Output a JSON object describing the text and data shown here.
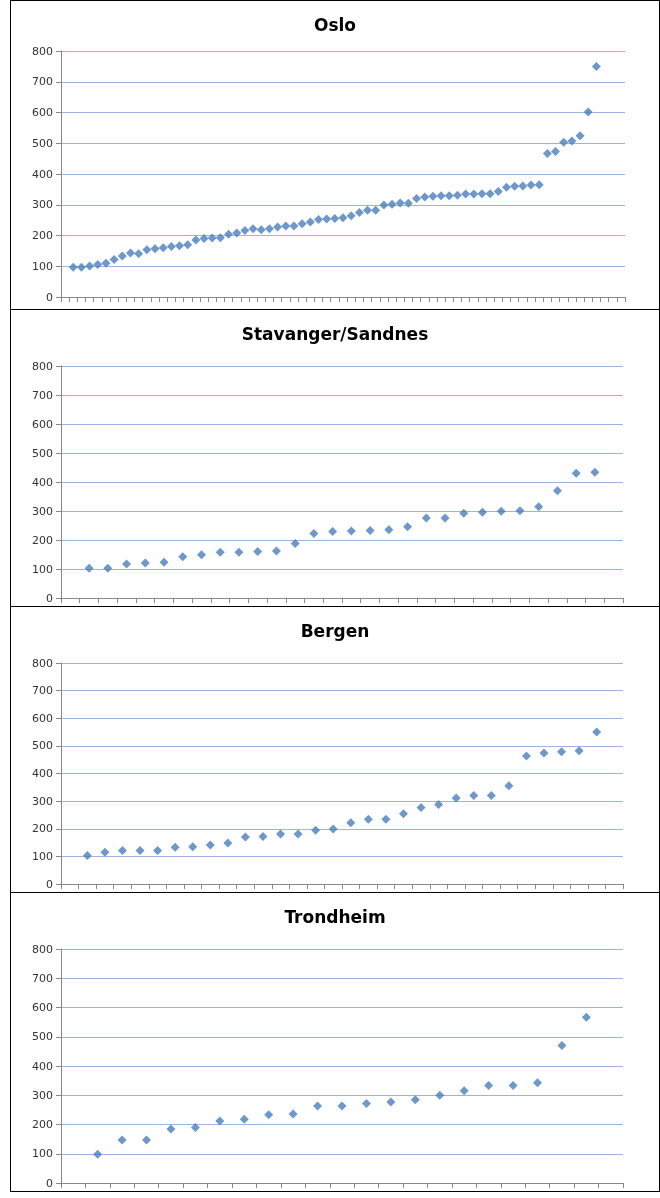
{
  "chart_data": [
    {
      "type": "scatter",
      "title": "Oslo",
      "categories": [
        null,
        null,
        null,
        null,
        null,
        null,
        null,
        null,
        null,
        null,
        null,
        null,
        null,
        null,
        null,
        null,
        null,
        null,
        null,
        null,
        null,
        null,
        null,
        null,
        null,
        null,
        null,
        null,
        null,
        null,
        null,
        null,
        null,
        null,
        null,
        null,
        null,
        null,
        null,
        null,
        null,
        null,
        null,
        null,
        null,
        null,
        null,
        null,
        null,
        null,
        null,
        null,
        null,
        null,
        null,
        null,
        null,
        null,
        null,
        null,
        null,
        null,
        null,
        null,
        null,
        null,
        null,
        null,
        null
      ],
      "series": [
        {
          "color": "#4a7ebb",
          "values": [
            null,
            97,
            97,
            101,
            106,
            110,
            122,
            133,
            143,
            141,
            154,
            157,
            160,
            164,
            167,
            170,
            185,
            190,
            192,
            193,
            204,
            208,
            216,
            222,
            219,
            222,
            228,
            231,
            231,
            238,
            244,
            252,
            254,
            255,
            258,
            264,
            275,
            282,
            282,
            299,
            302,
            306,
            305,
            320,
            325,
            328,
            329,
            329,
            331,
            335,
            335,
            336,
            336,
            343,
            357,
            360,
            361,
            364,
            365,
            467,
            473,
            503,
            507,
            524,
            602,
            750,
            null,
            null,
            null
          ]
        }
      ],
      "ylim": [
        0,
        800
      ],
      "yticks": [
        0,
        100,
        200,
        300,
        400,
        500,
        600,
        700,
        800
      ],
      "grid": "y",
      "marker": "diamond",
      "tick_labels": "y"
    },
    {
      "type": "scatter",
      "title": "Stavanger/Sandnes",
      "categories": [
        null,
        null,
        null,
        null,
        null,
        null,
        null,
        null,
        null,
        null,
        null,
        null,
        null,
        null,
        null,
        null,
        null,
        null,
        null,
        null,
        null,
        null,
        null,
        null,
        null,
        null,
        null,
        null,
        null,
        null
      ],
      "series": [
        {
          "color": "#4a7ebb",
          "values": [
            null,
            103,
            103,
            117,
            121,
            123,
            142,
            149,
            158,
            158,
            160,
            162,
            188,
            222,
            229,
            231,
            233,
            235,
            246,
            276,
            276,
            292,
            296,
            299,
            301,
            315,
            370,
            430,
            434,
            null
          ]
        }
      ],
      "ylim": [
        0,
        800
      ],
      "yticks": [
        0,
        100,
        200,
        300,
        400,
        500,
        600,
        700,
        800
      ],
      "grid": "y",
      "marker": "diamond",
      "tick_labels": "y"
    },
    {
      "type": "scatter",
      "title": "Bergen",
      "categories": [
        null,
        null,
        null,
        null,
        null,
        null,
        null,
        null,
        null,
        null,
        null,
        null,
        null,
        null,
        null,
        null,
        null,
        null,
        null,
        null,
        null,
        null,
        null,
        null,
        null,
        null,
        null,
        null,
        null,
        null,
        null,
        null
      ],
      "series": [
        {
          "color": "#4a7ebb",
          "values": [
            null,
            103,
            115,
            121,
            121,
            121,
            133,
            135,
            141,
            148,
            170,
            172,
            181,
            181,
            195,
            199,
            222,
            234,
            234,
            254,
            277,
            288,
            311,
            320,
            320,
            356,
            463,
            474,
            479,
            482,
            550,
            null
          ]
        }
      ],
      "ylim": [
        0,
        800
      ],
      "yticks": [
        0,
        100,
        200,
        300,
        400,
        500,
        600,
        700,
        800
      ],
      "grid": "y",
      "marker": "diamond",
      "tick_labels": "y"
    },
    {
      "type": "scatter",
      "title": "Trondheim",
      "categories": [
        null,
        null,
        null,
        null,
        null,
        null,
        null,
        null,
        null,
        null,
        null,
        null,
        null,
        null,
        null,
        null,
        null,
        null,
        null,
        null,
        null,
        null,
        null
      ],
      "series": [
        {
          "color": "#4a7ebb",
          "values": [
            null,
            98,
            147,
            147,
            185,
            190,
            212,
            218,
            233,
            236,
            263,
            263,
            272,
            277,
            285,
            300,
            315,
            333,
            333,
            343,
            470,
            567,
            null
          ]
        }
      ],
      "ylim": [
        0,
        800
      ],
      "yticks": [
        0,
        100,
        200,
        300,
        400,
        500,
        600,
        700,
        800
      ],
      "grid": "y",
      "marker": "diamond",
      "tick_labels": "y"
    }
  ]
}
